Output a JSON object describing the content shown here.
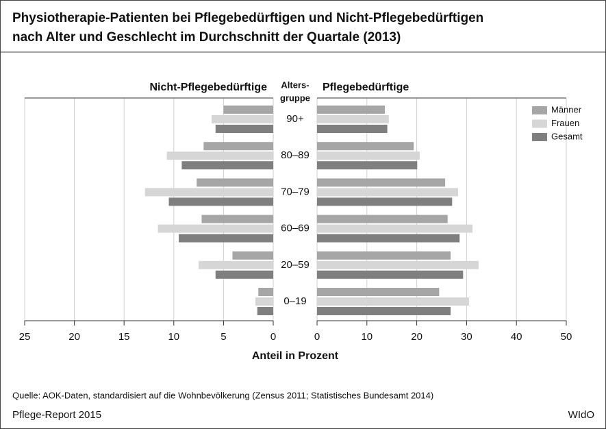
{
  "title": [
    "Physiotherapie-Patienten bei Pflegebedürftigen und Nicht-Pflegebedürftigen",
    "nach Alter und Geschlecht im Durchschnitt der Quartale (2013)"
  ],
  "categories": [
    "90+",
    "80–89",
    "70–79",
    "60–69",
    "20–59",
    "0–19"
  ],
  "category_label": [
    "Alters-",
    "gruppe"
  ],
  "xlabel": "Anteil in Prozent",
  "source": "Quelle: AOK-Daten, standardisiert auf die Wohnbevölkerung (Zensus 2011; Statistisches Bundesamt 2014)",
  "report": "Pflege-Report 2015",
  "publisher": "WIdO",
  "chart_data": [
    {
      "type": "bar",
      "title": "Nicht-Pflegebedürftige",
      "xlim": [
        25,
        0
      ],
      "xticks": [
        25,
        20,
        15,
        10,
        5,
        0
      ],
      "grid": true,
      "series": [
        {
          "name": "Männer",
          "color": "#a6a6a6",
          "values": [
            5.0,
            7.0,
            7.7,
            7.2,
            4.1,
            1.5
          ]
        },
        {
          "name": "Frauen",
          "color": "#d6d6d6",
          "values": [
            6.2,
            10.7,
            12.9,
            11.6,
            7.5,
            1.8
          ]
        },
        {
          "name": "Gesamt",
          "color": "#7f7f7f",
          "values": [
            5.8,
            9.2,
            10.5,
            9.5,
            5.8,
            1.6
          ]
        }
      ]
    },
    {
      "type": "bar",
      "title": "Pflegebedürftige",
      "xlim": [
        0,
        50
      ],
      "xticks": [
        0,
        10,
        20,
        30,
        40,
        50
      ],
      "grid": true,
      "legend": "upper right",
      "series": [
        {
          "name": "Männer",
          "color": "#a6a6a6",
          "values": [
            13.6,
            19.4,
            25.7,
            26.2,
            26.8,
            24.5
          ]
        },
        {
          "name": "Frauen",
          "color": "#d6d6d6",
          "values": [
            14.4,
            20.6,
            28.3,
            31.2,
            32.4,
            30.5
          ]
        },
        {
          "name": "Gesamt",
          "color": "#7f7f7f",
          "values": [
            14.1,
            20.1,
            27.1,
            28.6,
            29.3,
            26.8
          ]
        }
      ]
    }
  ]
}
